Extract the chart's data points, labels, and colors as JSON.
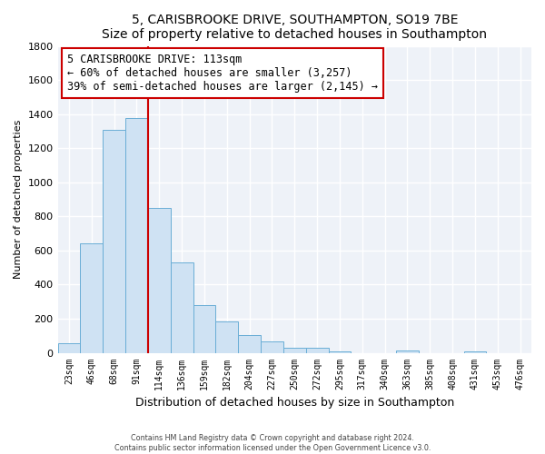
{
  "title": "5, CARISBROOKE DRIVE, SOUTHAMPTON, SO19 7BE",
  "subtitle": "Size of property relative to detached houses in Southampton",
  "xlabel": "Distribution of detached houses by size in Southampton",
  "ylabel": "Number of detached properties",
  "bar_labels": [
    "23sqm",
    "46sqm",
    "68sqm",
    "91sqm",
    "114sqm",
    "136sqm",
    "159sqm",
    "182sqm",
    "204sqm",
    "227sqm",
    "250sqm",
    "272sqm",
    "295sqm",
    "317sqm",
    "340sqm",
    "363sqm",
    "385sqm",
    "408sqm",
    "431sqm",
    "453sqm",
    "476sqm"
  ],
  "bar_values": [
    55,
    640,
    1310,
    1375,
    850,
    530,
    280,
    182,
    105,
    68,
    30,
    28,
    8,
    0,
    0,
    14,
    0,
    0,
    8,
    0,
    0
  ],
  "bar_color": "#cfe2f3",
  "bar_edge_color": "#6aaed6",
  "vline_x_idx": 4,
  "vline_color": "#cc0000",
  "annotation_title": "5 CARISBROOKE DRIVE: 113sqm",
  "annotation_line1": "← 60% of detached houses are smaller (3,257)",
  "annotation_line2": "39% of semi-detached houses are larger (2,145) →",
  "annotation_box_edge": "#cc0000",
  "ylim": [
    0,
    1800
  ],
  "yticks": [
    0,
    200,
    400,
    600,
    800,
    1000,
    1200,
    1400,
    1600,
    1800
  ],
  "footer1": "Contains HM Land Registry data © Crown copyright and database right 2024.",
  "footer2": "Contains public sector information licensed under the Open Government Licence v3.0.",
  "bg_color": "#ffffff",
  "plot_bg_color": "#eef2f8",
  "grid_color": "#ffffff"
}
